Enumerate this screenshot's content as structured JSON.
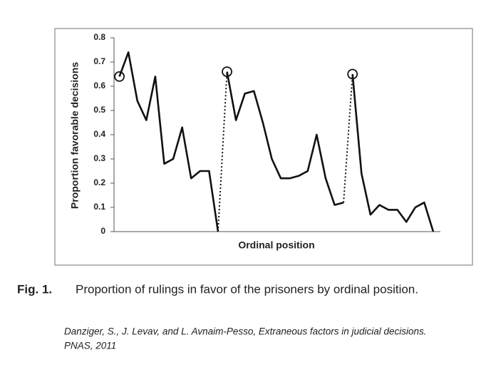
{
  "chart_data": {
    "type": "line",
    "x_label": "Ordinal position",
    "y_label": "Proportion favorable decisions",
    "caption_label": "Fig. 1.",
    "caption": "Proportion of rulings in favor of the prisoners by ordinal position.",
    "citation": [
      "Danziger, S., J. Levav, and L. Avnaim-Pesso, Extraneous factors in judicial decisions.",
      "PNAS, 2011"
    ],
    "color": "#111111",
    "xlim": [
      0.4,
      36.8
    ],
    "ylim": [
      0,
      0.8
    ],
    "yticks": [
      0,
      0.1,
      0.2,
      0.3,
      0.4,
      0.5,
      0.6,
      0.7,
      0.8
    ],
    "segments": [
      {
        "x": [
          1,
          2,
          3,
          4,
          5,
          6,
          7,
          8,
          9,
          10,
          11,
          12
        ],
        "values": [
          0.64,
          0.74,
          0.54,
          0.46,
          0.64,
          0.28,
          0.3,
          0.43,
          0.22,
          0.25,
          0.25,
          0
        ]
      },
      {
        "x": [
          13,
          14,
          15,
          16,
          17,
          18,
          19,
          20,
          21,
          22,
          23,
          24,
          25,
          26
        ],
        "values": [
          0.66,
          0.46,
          0.57,
          0.58,
          0.45,
          0.3,
          0.22,
          0.22,
          0.23,
          0.25,
          0.4,
          0.22,
          0.11,
          0.12
        ]
      },
      {
        "x": [
          27,
          28,
          29,
          30,
          31,
          32,
          33,
          34,
          35,
          36
        ],
        "values": [
          0.65,
          0.24,
          0.07,
          0.11,
          0.09,
          0.09,
          0.04,
          0.1,
          0.12,
          0
        ]
      }
    ]
  }
}
